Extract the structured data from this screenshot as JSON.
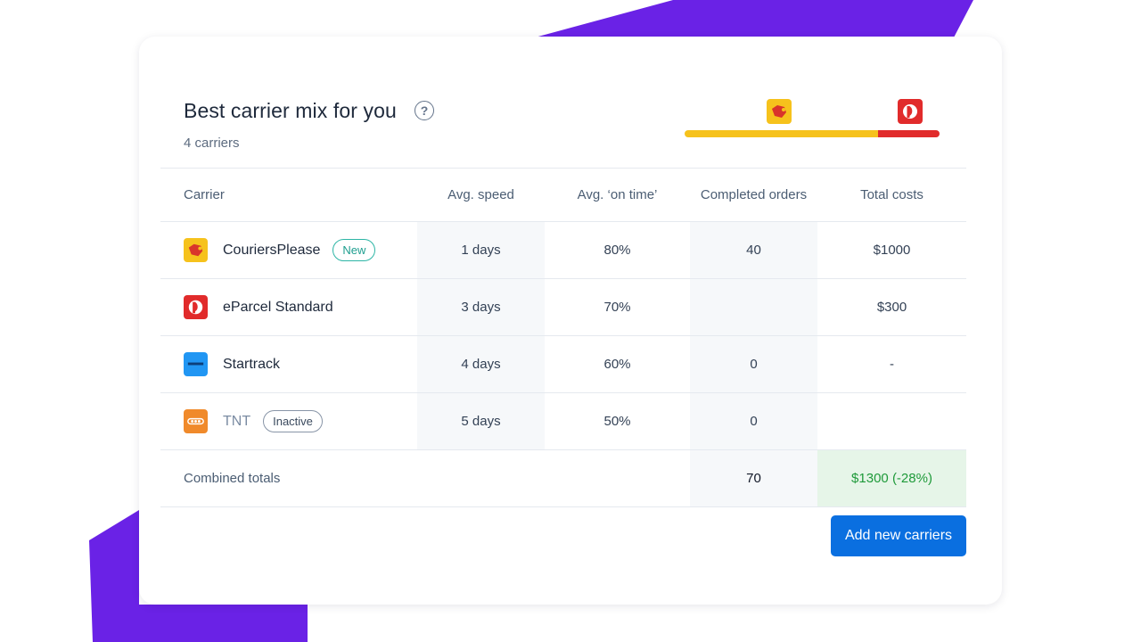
{
  "header": {
    "title": "Best carrier mix for you",
    "subtitle": "4 carriers",
    "help_icon": "question-circle-icon"
  },
  "mix_bar": {
    "segments": [
      {
        "carrier": "CouriersPlease",
        "share": 0.76,
        "color": "#f6c21c"
      },
      {
        "carrier": "eParcel Standard",
        "share": 0.24,
        "color": "#e12b2b"
      }
    ]
  },
  "table": {
    "columns": [
      "Carrier",
      "Avg. speed",
      "Avg. ‘on time’",
      "Completed orders",
      "Total costs"
    ],
    "rows": [
      {
        "name": "CouriersPlease",
        "badge": "New",
        "speed": "1 days",
        "on_time": "80%",
        "orders": "40",
        "cost": "$1000",
        "logo_color": "#f6c21c",
        "icon": "couriersplease-logo-icon",
        "status": "active"
      },
      {
        "name": "eParcel Standard",
        "badge": "",
        "speed": "3 days",
        "on_time": "70%",
        "orders": "",
        "cost": "$300",
        "logo_color": "#e12b2b",
        "icon": "auspost-logo-icon",
        "status": "active"
      },
      {
        "name": "Startrack",
        "badge": "",
        "speed": "4 days",
        "on_time": "60%",
        "orders": "0",
        "cost": "-",
        "logo_color": "#2196f3",
        "icon": "startrack-logo-icon",
        "status": "active"
      },
      {
        "name": "TNT",
        "badge": "Inactive",
        "speed": "5 days",
        "on_time": "50%",
        "orders": "0",
        "cost": "",
        "logo_color": "#f08a2b",
        "icon": "tnt-logo-icon",
        "status": "inactive"
      }
    ],
    "totals": {
      "label": "Combined totals",
      "orders": "70",
      "cost": "$1300",
      "savings": "(-28%)"
    }
  },
  "actions": {
    "add_label": "Add new carriers"
  },
  "colors": {
    "accent_purple": "#6a22e6",
    "primary_button": "#0a6fe0",
    "savings_green": "#1f9a3a"
  }
}
